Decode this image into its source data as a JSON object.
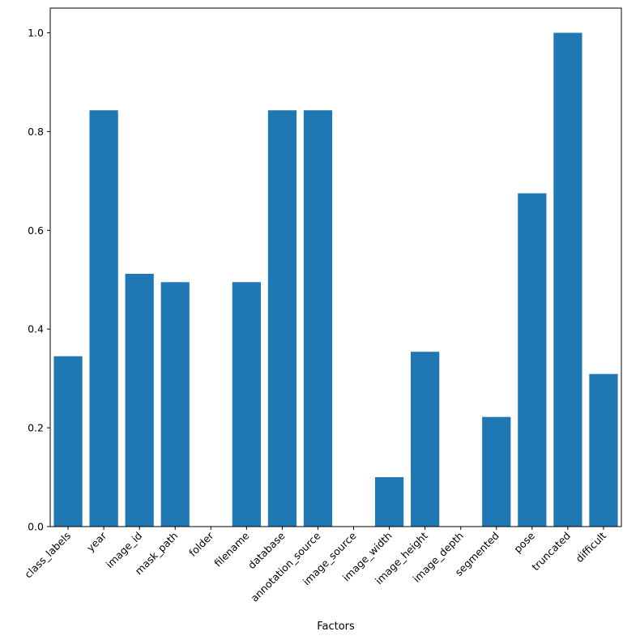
{
  "chart_data": {
    "type": "bar",
    "title": "",
    "xlabel": "Factors",
    "ylabel": "",
    "categories": [
      "class_labels",
      "year",
      "image_id",
      "mask_path",
      "folder",
      "filename",
      "database",
      "annotation_source",
      "image_source",
      "image_width",
      "image_height",
      "image_depth",
      "segmented",
      "pose",
      "truncated",
      "difficult"
    ],
    "values": [
      0.345,
      0.843,
      0.512,
      0.495,
      0.0,
      0.495,
      0.843,
      0.843,
      0.0,
      0.1,
      0.354,
      0.0,
      0.222,
      0.675,
      1.0,
      0.309
    ],
    "ylim": [
      0,
      1.05
    ],
    "yticks": [
      0.0,
      0.2,
      0.4,
      0.6,
      0.8,
      1.0
    ],
    "ytick_labels": [
      "0.0",
      "0.2",
      "0.4",
      "0.6",
      "0.8",
      "1.0"
    ],
    "bar_color": "#1f77b4",
    "grid": false,
    "legend": "none"
  }
}
